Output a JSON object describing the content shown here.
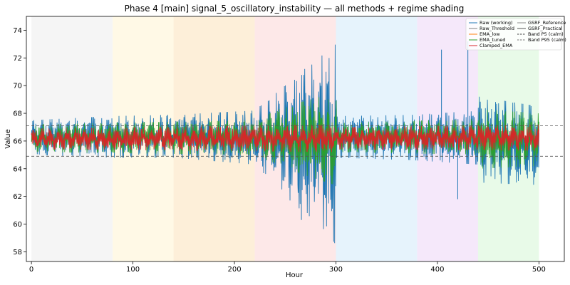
{
  "chart_data": {
    "type": "line",
    "title": "Phase 4 [main] signal_5_oscillatory_instability — all methods + regime shading",
    "xlabel": "Hour",
    "ylabel": "Value",
    "xlim": [
      -5,
      525
    ],
    "ylim": [
      57.3,
      75.0
    ],
    "xticks": [
      0,
      100,
      200,
      300,
      400,
      500
    ],
    "yticks": [
      58,
      60,
      62,
      64,
      66,
      68,
      70,
      72,
      74
    ],
    "grid": false,
    "legend_position": "top-right",
    "regimes": [
      {
        "start": 0,
        "end": 80,
        "color": "#f2f2f2"
      },
      {
        "start": 80,
        "end": 140,
        "color": "#fff7e0"
      },
      {
        "start": 140,
        "end": 220,
        "color": "#fdebd0"
      },
      {
        "start": 220,
        "end": 300,
        "color": "#fde2e2"
      },
      {
        "start": 300,
        "end": 380,
        "color": "#e0f0fb"
      },
      {
        "start": 380,
        "end": 440,
        "color": "#f2e2f9"
      },
      {
        "start": 440,
        "end": 500,
        "color": "#e2f9e2"
      }
    ],
    "reference_lines": [
      {
        "name": "Band P5 (calm)",
        "y": 64.9
      },
      {
        "name": "Band P95 (calm)",
        "y": 67.1
      }
    ],
    "series": [
      {
        "name": "Raw (working)",
        "color": "#1f77b4",
        "style": "solid",
        "envelope": [
          [
            0,
            65.0,
            67.5
          ],
          [
            80,
            64.8,
            67.8
          ],
          [
            140,
            64.8,
            67.9
          ],
          [
            220,
            64.3,
            68.2
          ],
          [
            250,
            62.0,
            70.0
          ],
          [
            290,
            59.5,
            72.5
          ],
          [
            300,
            58.5,
            73.0
          ],
          [
            301,
            64.8,
            67.8
          ],
          [
            380,
            64.6,
            67.9
          ],
          [
            440,
            64.3,
            68.2
          ],
          [
            441,
            63.0,
            69.2
          ],
          [
            500,
            62.8,
            68.5
          ]
        ],
        "spikes": [
          [
            404,
            72.6
          ],
          [
            420,
            61.8
          ],
          [
            430,
            73.2
          ],
          [
            266,
            60.3
          ]
        ]
      },
      {
        "name": "Raw_Threshold",
        "color": "#7f7f7f",
        "style": "solid"
      },
      {
        "name": "EMA_low",
        "color": "#ff7f0e",
        "style": "solid"
      },
      {
        "name": "EMA_tuned",
        "color": "#2ca02c",
        "style": "solid",
        "envelope": [
          [
            0,
            65.2,
            67.2
          ],
          [
            220,
            65.0,
            67.5
          ],
          [
            250,
            64.0,
            68.5
          ],
          [
            300,
            62.8,
            69.5
          ],
          [
            301,
            65.2,
            67.3
          ],
          [
            440,
            65.0,
            67.6
          ],
          [
            441,
            64.0,
            68.3
          ],
          [
            500,
            64.2,
            68.0
          ]
        ]
      },
      {
        "name": "Clamped_EMA",
        "color": "#d62728",
        "style": "solid",
        "envelope": [
          [
            0,
            65.4,
            66.9
          ],
          [
            300,
            65.2,
            67.2
          ],
          [
            301,
            65.4,
            67.0
          ],
          [
            500,
            65.3,
            67.2
          ]
        ]
      },
      {
        "name": "GSRF_Reference",
        "color": "#8c8c8c",
        "style": "solid"
      },
      {
        "name": "GSRF_Practical",
        "color": "#555555",
        "style": "solid"
      },
      {
        "name": "Band P5 (calm)",
        "color": "#444444",
        "style": "dashed"
      },
      {
        "name": "Band P95 (calm)",
        "color": "#777777",
        "style": "dashed"
      }
    ]
  }
}
